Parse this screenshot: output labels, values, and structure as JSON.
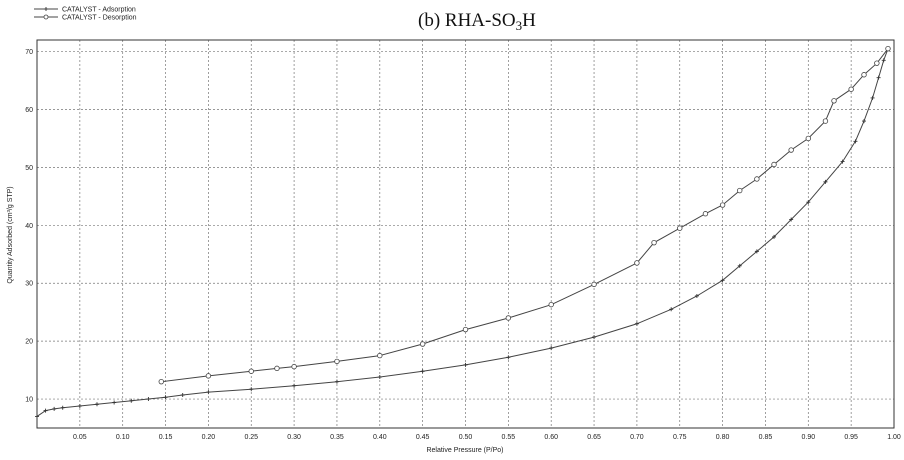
{
  "chart_data": {
    "type": "line",
    "title": "(b) RHA-SO",
    "title_sub": "3",
    "title_suffix": "H",
    "xlabel": "Relative Pressure (P/Po)",
    "ylabel": "Quantity Adsorbed (cm³/g STP)",
    "xlim": [
      0.0,
      1.0
    ],
    "ylim": [
      5,
      72
    ],
    "x_ticks": [
      "0.05",
      "0.10",
      "0.15",
      "0.20",
      "0.25",
      "0.30",
      "0.35",
      "0.40",
      "0.45",
      "0.50",
      "0.55",
      "0.60",
      "0.65",
      "0.70",
      "0.75",
      "0.80",
      "0.85",
      "0.90",
      "0.95",
      "1.00"
    ],
    "y_ticks": [
      "10",
      "20",
      "30",
      "40",
      "50",
      "60",
      "70"
    ],
    "grid": true,
    "legend_position": "top-left",
    "series": [
      {
        "name": "CATALYST - Adsorption",
        "marker": "plus",
        "x": [
          0.0,
          0.01,
          0.02,
          0.03,
          0.05,
          0.07,
          0.09,
          0.11,
          0.13,
          0.15,
          0.17,
          0.2,
          0.25,
          0.3,
          0.35,
          0.4,
          0.45,
          0.5,
          0.55,
          0.6,
          0.65,
          0.7,
          0.74,
          0.77,
          0.8,
          0.82,
          0.84,
          0.86,
          0.88,
          0.9,
          0.92,
          0.94,
          0.955,
          0.965,
          0.975,
          0.982,
          0.988,
          0.993
        ],
        "y": [
          7.0,
          8.0,
          8.3,
          8.5,
          8.8,
          9.1,
          9.4,
          9.7,
          10.0,
          10.3,
          10.7,
          11.2,
          11.7,
          12.3,
          13.0,
          13.8,
          14.8,
          15.9,
          17.2,
          18.8,
          20.7,
          23.0,
          25.5,
          27.8,
          30.5,
          33.0,
          35.5,
          38.0,
          41.0,
          44.0,
          47.5,
          51.0,
          54.5,
          58.0,
          62.0,
          65.5,
          68.5,
          70.5
        ]
      },
      {
        "name": "CATALYST - Desorption",
        "marker": "circle",
        "x": [
          0.993,
          0.98,
          0.965,
          0.95,
          0.93,
          0.92,
          0.9,
          0.88,
          0.86,
          0.84,
          0.82,
          0.8,
          0.78,
          0.75,
          0.72,
          0.7,
          0.65,
          0.6,
          0.55,
          0.5,
          0.45,
          0.4,
          0.35,
          0.3,
          0.28,
          0.25,
          0.2,
          0.145
        ],
        "y": [
          70.5,
          68.0,
          66.0,
          63.5,
          61.5,
          58.0,
          55.0,
          53.0,
          50.5,
          48.0,
          46.0,
          43.5,
          42.0,
          39.5,
          37.0,
          33.5,
          29.8,
          26.3,
          24.0,
          22.0,
          19.5,
          17.5,
          16.5,
          15.6,
          15.3,
          14.8,
          14.0,
          13.0
        ]
      }
    ]
  }
}
